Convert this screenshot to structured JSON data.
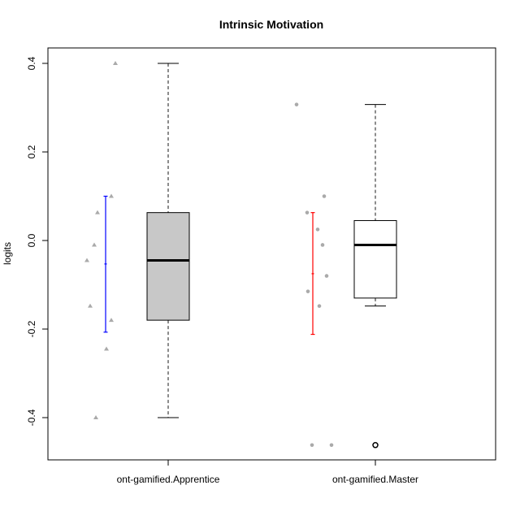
{
  "chart_data": {
    "type": "box",
    "title": "Intrinsic Motivation",
    "xlabel": "",
    "ylabel": "logits",
    "ylim": [
      -0.49,
      0.43
    ],
    "yticks": [
      -0.4,
      -0.2,
      0.0,
      0.2,
      0.4
    ],
    "ytick_labels": [
      "-0.4",
      "-0.2",
      "0.0",
      "0.2",
      "0.4"
    ],
    "grid": false,
    "categories": [
      "ont-gamified.Apprentice",
      "ont-gamified.Master"
    ],
    "boxes": [
      {
        "category": "ont-gamified.Apprentice",
        "fill": "#c8c8c8",
        "min": -0.4,
        "q1": -0.18,
        "median": -0.045,
        "q3": 0.063,
        "max": 0.4,
        "outliers": []
      },
      {
        "category": "ont-gamified.Master",
        "fill": "#ffffff",
        "min": -0.148,
        "q1": -0.13,
        "median": -0.01,
        "q3": 0.045,
        "max": 0.307,
        "outliers": [
          -0.462
        ]
      }
    ],
    "error_bars": [
      {
        "category": "ont-gamified.Apprentice",
        "color": "#0000ff",
        "mean": -0.053,
        "low": -0.207,
        "high": 0.1
      },
      {
        "category": "ont-gamified.Master",
        "color": "#ff0000",
        "mean": -0.075,
        "low": -0.212,
        "high": 0.063
      }
    ],
    "points": [
      {
        "category": "ont-gamified.Apprentice",
        "marker": "triangle",
        "color": "#aaaaaa",
        "values": [
          0.4,
          0.1,
          0.063,
          -0.01,
          -0.045,
          -0.148,
          -0.18,
          -0.245,
          -0.4
        ]
      },
      {
        "category": "ont-gamified.Master",
        "marker": "circle",
        "color": "#aaaaaa",
        "values": [
          0.307,
          0.1,
          0.063,
          0.025,
          -0.01,
          -0.08,
          -0.115,
          -0.148,
          -0.462,
          -0.462
        ]
      }
    ]
  }
}
